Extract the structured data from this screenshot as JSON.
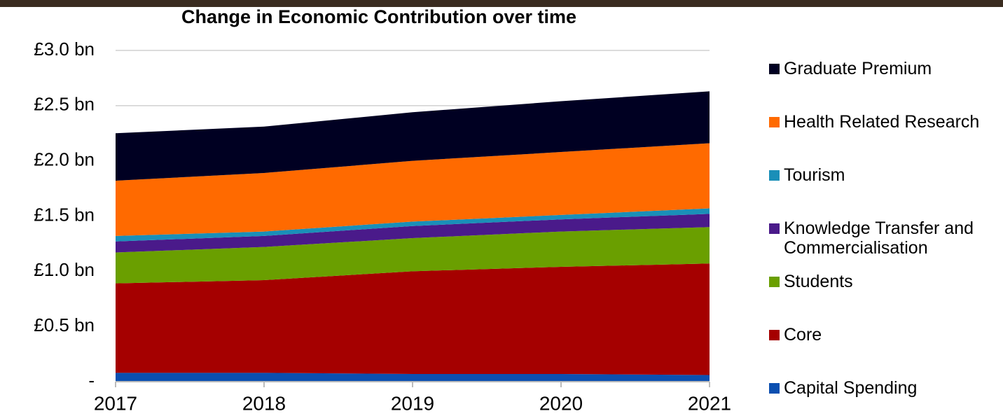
{
  "chart_data": {
    "type": "stacked-area",
    "title": "Change in Economic Contribution over time",
    "categories": [
      "2017",
      "2018",
      "2019",
      "2020",
      "2021"
    ],
    "ylim": [
      0,
      3.0
    ],
    "yticks": [
      {
        "value": 0,
        "label": "-"
      },
      {
        "value": 0.5,
        "label": "£0.5 bn"
      },
      {
        "value": 1.0,
        "label": "£1.0 bn"
      },
      {
        "value": 1.5,
        "label": "£1.5 bn"
      },
      {
        "value": 2.0,
        "label": "£2.0 bn"
      },
      {
        "value": 2.5,
        "label": "£2.5 bn"
      },
      {
        "value": 3.0,
        "label": "£3.0 bn"
      }
    ],
    "grid": true,
    "legend": "right",
    "series": [
      {
        "name": "Capital Spending",
        "color": "#0b4fb0",
        "values": [
          0.08,
          0.08,
          0.07,
          0.07,
          0.06
        ]
      },
      {
        "name": "Core",
        "color": "#a50000",
        "values": [
          0.81,
          0.84,
          0.93,
          0.97,
          1.01
        ]
      },
      {
        "name": "Students",
        "color": "#6a9f00",
        "values": [
          0.28,
          0.3,
          0.3,
          0.32,
          0.33
        ]
      },
      {
        "name": "Knowledge Transfer and Commercialisation",
        "color": "#4a1a8a",
        "values": [
          0.1,
          0.1,
          0.11,
          0.11,
          0.12
        ]
      },
      {
        "name": "Tourism",
        "color": "#1a8fb8",
        "values": [
          0.05,
          0.04,
          0.04,
          0.04,
          0.05
        ]
      },
      {
        "name": "Health Related Research",
        "color": "#ff6a00",
        "values": [
          0.5,
          0.53,
          0.55,
          0.57,
          0.59
        ]
      },
      {
        "name": "Graduate Premium",
        "color": "#000022",
        "values": [
          0.43,
          0.42,
          0.44,
          0.46,
          0.47
        ]
      }
    ]
  }
}
